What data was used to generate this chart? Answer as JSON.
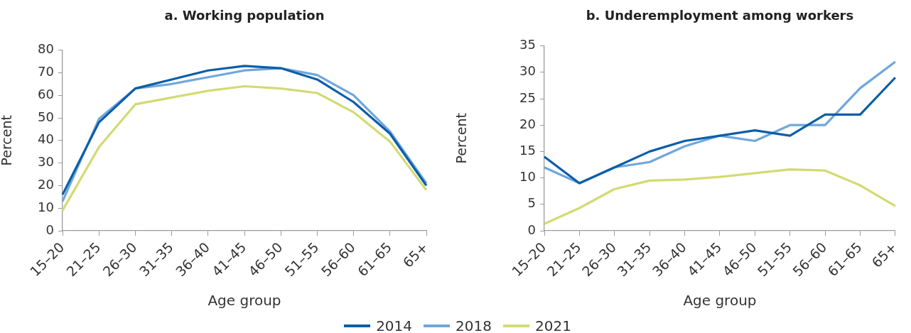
{
  "chart_data": [
    {
      "type": "line",
      "title": "a. Working population",
      "xlabel": "Age group",
      "ylabel": "Percent",
      "categories": [
        "15–20",
        "21–25",
        "26–30",
        "31–35",
        "36–40",
        "41–45",
        "46–50",
        "51–55",
        "56–60",
        "61–65",
        "65+"
      ],
      "series": [
        {
          "name": "2014",
          "color": "#0b5ea8",
          "values": [
            16,
            48,
            63,
            67,
            71,
            73,
            72,
            67,
            57,
            43,
            20
          ]
        },
        {
          "name": "2018",
          "color": "#6fa7db",
          "values": [
            13,
            49.5,
            63,
            65,
            68,
            71,
            72,
            69,
            60,
            44,
            21
          ]
        },
        {
          "name": "2021",
          "color": "#d3da72",
          "values": [
            9,
            37,
            56,
            59,
            62,
            64,
            63,
            61,
            52.5,
            39.5,
            18
          ]
        }
      ],
      "ylim": [
        0,
        80
      ],
      "yticks": [
        0,
        10,
        20,
        30,
        40,
        50,
        60,
        70,
        80
      ],
      "legend": "bottom"
    },
    {
      "type": "line",
      "title": "b. Underemployment among workers",
      "xlabel": "Age group",
      "ylabel": "Percent",
      "categories": [
        "15–20",
        "21–25",
        "26–30",
        "31–35",
        "36–40",
        "41–45",
        "46–50",
        "51–55",
        "56–60",
        "61–65",
        "65+"
      ],
      "series": [
        {
          "name": "2014",
          "color": "#0b5ea8",
          "values": [
            14,
            9,
            12,
            15,
            17,
            18,
            19,
            18,
            22,
            22,
            29
          ]
        },
        {
          "name": "2018",
          "color": "#6fa7db",
          "values": [
            12,
            9,
            12,
            13,
            16,
            18,
            17,
            20,
            20,
            27,
            32
          ]
        },
        {
          "name": "2021",
          "color": "#d3da72",
          "values": [
            1.3,
            4.3,
            7.9,
            9.5,
            9.7,
            10.2,
            10.9,
            11.6,
            11.4,
            8.6,
            4.7
          ]
        }
      ],
      "ylim": [
        0,
        35
      ],
      "yticks": [
        0,
        5,
        10,
        15,
        20,
        25,
        30,
        35
      ],
      "legend": "bottom"
    }
  ]
}
